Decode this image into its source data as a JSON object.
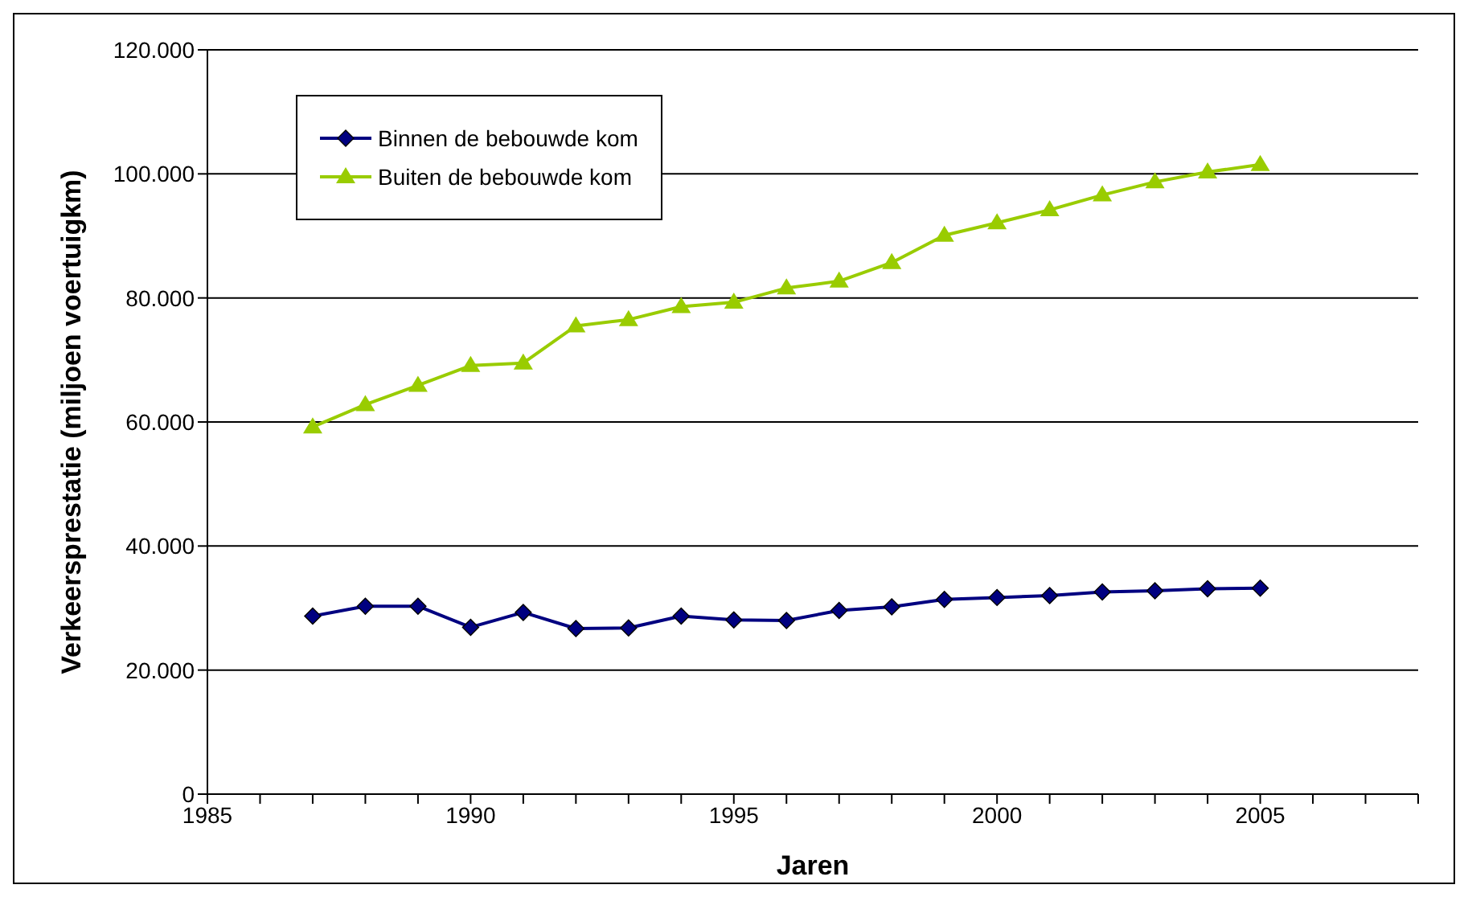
{
  "chart_data": {
    "type": "line",
    "xlabel": "Jaren",
    "ylabel": "Verkeersprestatie (miljoen voertuigkm)",
    "x": [
      1987,
      1988,
      1989,
      1990,
      1991,
      1992,
      1993,
      1994,
      1995,
      1996,
      1997,
      1998,
      1999,
      2000,
      2001,
      2002,
      2003,
      2004,
      2005
    ],
    "series": [
      {
        "name": "Binnen de bebouwde kom",
        "color": "#000080",
        "marker": "diamond",
        "values": [
          28700,
          30300,
          30300,
          26900,
          29300,
          26700,
          26800,
          28700,
          28100,
          28000,
          29600,
          30200,
          31400,
          31700,
          32000,
          32600,
          32800,
          33100,
          33200
        ]
      },
      {
        "name": "Buiten de bebouwde kom",
        "color": "#99cc00",
        "marker": "triangle",
        "values": [
          59200,
          62800,
          65900,
          69100,
          69500,
          75500,
          76500,
          78600,
          79300,
          81600,
          82700,
          85700,
          90100,
          92100,
          94200,
          96600,
          98700,
          100300,
          101500
        ]
      }
    ],
    "xlim": [
      1985,
      2008
    ],
    "xticks": [
      1985,
      {
        "value": 1986,
        "label": null
      },
      {
        "value": 1987,
        "label": null
      },
      {
        "value": 1988,
        "label": null
      },
      {
        "value": 1989,
        "label": null
      },
      1990,
      {
        "value": 1991,
        "label": null
      },
      {
        "value": 1992,
        "label": null
      },
      {
        "value": 1993,
        "label": null
      },
      {
        "value": 1994,
        "label": null
      },
      1995,
      {
        "value": 1996,
        "label": null
      },
      {
        "value": 1997,
        "label": null
      },
      {
        "value": 1998,
        "label": null
      },
      {
        "value": 1999,
        "label": null
      },
      2000,
      {
        "value": 2001,
        "label": null
      },
      {
        "value": 2002,
        "label": null
      },
      {
        "value": 2003,
        "label": null
      },
      {
        "value": 2004,
        "label": null
      },
      2005,
      {
        "value": 2006,
        "label": null
      },
      {
        "value": 2007,
        "label": null
      },
      {
        "value": 2008,
        "label": null
      }
    ],
    "ylim": [
      0,
      120000
    ],
    "yticks": [
      0,
      {
        "value": 20000,
        "label": "20.000"
      },
      {
        "value": 40000,
        "label": "40.000"
      },
      {
        "value": 60000,
        "label": "60.000"
      },
      {
        "value": 80000,
        "label": "80.000"
      },
      {
        "value": 100000,
        "label": "100.000"
      },
      {
        "value": 120000,
        "label": "120.000"
      }
    ],
    "grid": "y",
    "legend": "top left",
    "line_style": "solid"
  }
}
